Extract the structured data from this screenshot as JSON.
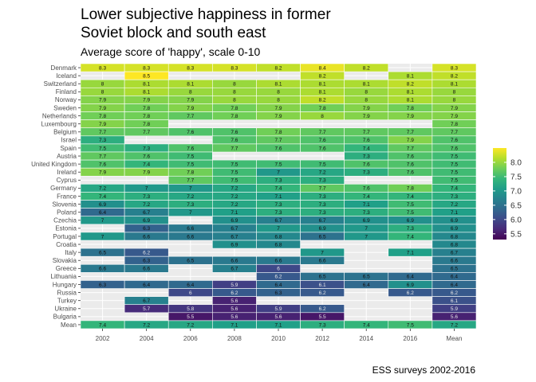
{
  "chart_data": {
    "type": "heatmap",
    "title_lines": [
      "Lower subjective happiness in former",
      "Soviet block and south east"
    ],
    "subtitle": "Average score of 'happy', scale 0-10",
    "caption": "ESS surveys 2002-2016",
    "x_categories": [
      "2002",
      "2004",
      "2006",
      "2008",
      "2010",
      "2012",
      "2014",
      "2016",
      "Mean"
    ],
    "y_categories": [
      "Denmark",
      "Iceland",
      "Switzerland",
      "Finland",
      "Norway",
      "Sweden",
      "Netherlands",
      "Luxembourg",
      "Belgium",
      "Israel",
      "Spain",
      "Austria",
      "United Kingdom",
      "Ireland",
      "Cyprus",
      "Germany",
      "France",
      "Slovenia",
      "Poland",
      "Czechia",
      "Estonia",
      "Portugal",
      "Croatia",
      "Italy",
      "Slovakia",
      "Greece",
      "Lithuania",
      "Hungary",
      "Russia",
      "Turkey",
      "Ukraine",
      "Bulgaria",
      "Mean"
    ],
    "values": [
      [
        "8.3",
        "8.3",
        "8.3",
        "8.3",
        "8.2",
        "8.4",
        "8.2",
        null,
        "8.3"
      ],
      [
        null,
        "8.5",
        null,
        null,
        null,
        "8.2",
        null,
        "8.1",
        "8.2"
      ],
      [
        "8",
        "8.1",
        "8.1",
        "8",
        "8.1",
        "8.1",
        "8.1",
        "8.2",
        "8.1"
      ],
      [
        "8",
        "8.1",
        "8",
        "8",
        "8",
        "8.1",
        "8",
        "8.1",
        "8"
      ],
      [
        "7.9",
        "7.9",
        "7.9",
        "8",
        "8",
        "8.2",
        "8",
        "8.1",
        "8"
      ],
      [
        "7.9",
        "7.8",
        "7.9",
        "7.8",
        "7.9",
        "7.8",
        "7.9",
        "7.8",
        "7.9"
      ],
      [
        "7.8",
        "7.8",
        "7.7",
        "7.8",
        "7.9",
        "8",
        "7.9",
        "7.9",
        "7.9"
      ],
      [
        "7.9",
        "7.8",
        null,
        null,
        null,
        null,
        null,
        null,
        "7.8"
      ],
      [
        "7.7",
        "7.7",
        "7.6",
        "7.6",
        "7.8",
        "7.7",
        "7.7",
        "7.7",
        "7.7"
      ],
      [
        "7.3",
        null,
        null,
        "7.6",
        "7.7",
        "7.6",
        "7.6",
        "7.9",
        "7.6"
      ],
      [
        "7.5",
        "7.3",
        "7.6",
        "7.7",
        "7.6",
        "7.6",
        "7.4",
        "7.7",
        "7.6"
      ],
      [
        "7.7",
        "7.6",
        "7.5",
        null,
        null,
        null,
        "7.3",
        "7.6",
        "7.5"
      ],
      [
        "7.6",
        "7.4",
        "7.5",
        "7.5",
        "7.5",
        "7.5",
        "7.6",
        "7.6",
        "7.5"
      ],
      [
        "7.9",
        "7.9",
        "7.8",
        "7.5",
        "7",
        "7.2",
        "7.3",
        "7.6",
        "7.5"
      ],
      [
        null,
        null,
        "7.7",
        "7.5",
        "7.3",
        "7.3",
        null,
        null,
        "7.5"
      ],
      [
        "7.2",
        "7",
        "7",
        "7.2",
        "7.4",
        "7.7",
        "7.6",
        "7.8",
        "7.4"
      ],
      [
        "7.4",
        "7.3",
        "7.2",
        "7.2",
        "7.1",
        "7.3",
        "7.4",
        "7.4",
        "7.3"
      ],
      [
        "6.9",
        "7.2",
        "7.3",
        "7.2",
        "7.3",
        "7.3",
        "7.1",
        "7.5",
        "7.2"
      ],
      [
        "6.4",
        "6.7",
        "7",
        "7.1",
        "7.3",
        "7.3",
        "7.3",
        "7.5",
        "7.1"
      ],
      [
        "7",
        "6.9",
        null,
        "6.9",
        "6.7",
        "6.7",
        "6.9",
        "6.9",
        "6.9"
      ],
      [
        null,
        "6.3",
        "6.6",
        "6.7",
        "7",
        "6.9",
        "7",
        "7.3",
        "6.9"
      ],
      [
        "7",
        "6.6",
        "6.6",
        "6.7",
        "6.8",
        "6.5",
        "7",
        "7.4",
        "6.8"
      ],
      [
        null,
        null,
        null,
        "6.9",
        "6.8",
        null,
        null,
        null,
        "6.8"
      ],
      [
        "6.5",
        "6.2",
        null,
        null,
        null,
        "7",
        null,
        "7.1",
        "6.7"
      ],
      [
        null,
        "6.3",
        "6.5",
        "6.6",
        "6.6",
        "6.6",
        null,
        null,
        "6.6"
      ],
      [
        "6.6",
        "6.6",
        null,
        "6.7",
        "6",
        null,
        null,
        null,
        "6.5"
      ],
      [
        null,
        null,
        null,
        null,
        "6.2",
        "6.5",
        "6.5",
        "6.4",
        "6.4"
      ],
      [
        "6.3",
        "6.4",
        "6.4",
        "5.9",
        "6.4",
        "6.1",
        "6.4",
        "6.9",
        "6.4"
      ],
      [
        null,
        null,
        "6",
        "6.2",
        "6.3",
        "6.2",
        null,
        "6.2",
        "6.2"
      ],
      [
        null,
        "6.7",
        null,
        "5.6",
        null,
        null,
        null,
        null,
        "6.1"
      ],
      [
        null,
        "5.7",
        "5.8",
        "5.6",
        "5.9",
        "6.2",
        null,
        null,
        "5.9"
      ],
      [
        null,
        null,
        "5.5",
        "5.6",
        "5.6",
        "5.5",
        null,
        null,
        "5.6"
      ],
      [
        "7.4",
        "7.2",
        "7.2",
        "7.1",
        "7.1",
        "7.3",
        "7.4",
        "7.5",
        "7.2"
      ]
    ],
    "color_scale": {
      "name": "viridis",
      "domain": [
        5.3,
        8.5
      ],
      "ticks": [
        "5.5",
        "6.0",
        "6.5",
        "7.0",
        "7.5",
        "8.0"
      ],
      "stops": [
        "#440154",
        "#482878",
        "#3e4989",
        "#31688e",
        "#26828e",
        "#1f9e89",
        "#35b779",
        "#6ece58",
        "#b5de2b",
        "#fde725"
      ]
    },
    "grid": true,
    "panel_background": "#ebebeb",
    "legend_position": "right"
  }
}
